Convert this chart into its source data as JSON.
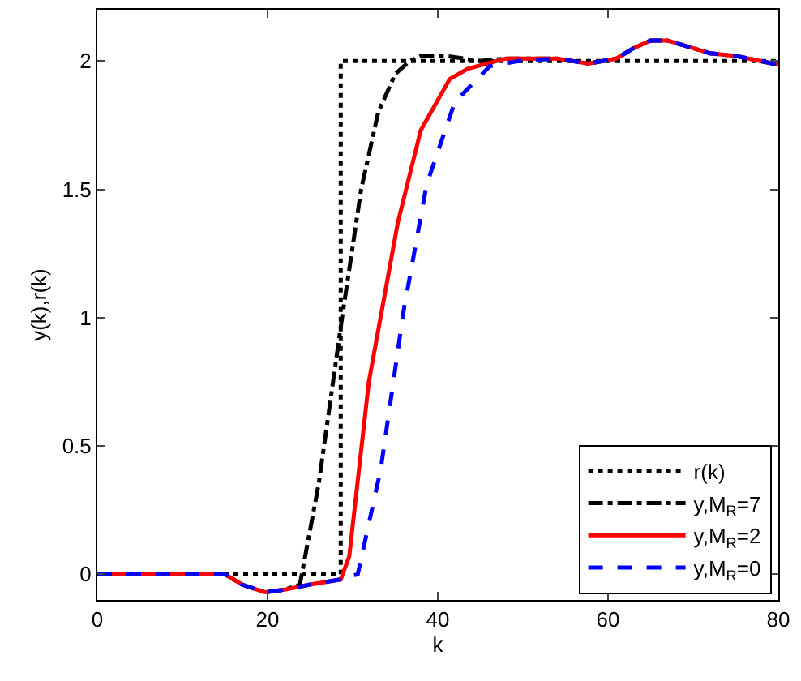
{
  "chart_data": {
    "type": "line",
    "xlabel": "k",
    "ylabel": "y(k),r(k)",
    "xlim": [
      0,
      80
    ],
    "ylim": [
      -0.1,
      2.2
    ],
    "xticks": [
      0,
      20,
      40,
      60,
      80
    ],
    "yticks": [
      0,
      0.5,
      1,
      1.5,
      2
    ],
    "legend": "bottom right",
    "series": [
      {
        "name": "r(k)",
        "color": "#000000",
        "line_style": "dotted",
        "x": [
          0,
          28.6,
          28.6,
          80
        ],
        "values": [
          0,
          0,
          2,
          2
        ]
      },
      {
        "name": "y,M$_{R}$=7",
        "color": "#000000",
        "line_style": "dashdot",
        "x": [
          0,
          15,
          17,
          19.7,
          22,
          23.8,
          26,
          28.8,
          31,
          33,
          35,
          36.7,
          38,
          41,
          45,
          48,
          54,
          57.7,
          61,
          63,
          65,
          67,
          72,
          75,
          79.4,
          80
        ],
        "values": [
          0,
          0,
          -0.04,
          -0.07,
          -0.06,
          -0.04,
          0.35,
          1.01,
          1.5,
          1.8,
          1.95,
          2.0,
          2.02,
          2.02,
          2.0,
          2.01,
          2.01,
          1.99,
          2.01,
          2.05,
          2.08,
          2.08,
          2.03,
          2.02,
          1.99,
          1.99
        ]
      },
      {
        "name": "y,M$_{R}$=2",
        "color": "#ff0000",
        "line_style": "solid",
        "x": [
          0,
          15,
          17,
          19.7,
          22,
          25,
          28.6,
          29.6,
          31.9,
          35.3,
          38,
          41.4,
          43.5,
          48,
          54,
          57.7,
          61,
          63,
          65,
          67,
          72,
          75,
          79.4,
          80
        ],
        "values": [
          0,
          0,
          -0.04,
          -0.07,
          -0.06,
          -0.04,
          -0.02,
          0.07,
          0.75,
          1.37,
          1.73,
          1.93,
          1.97,
          2.01,
          2.01,
          1.99,
          2.01,
          2.05,
          2.08,
          2.08,
          2.03,
          2.02,
          1.99,
          1.99
        ]
      },
      {
        "name": "y,M$_{R}$=0",
        "color": "#0000ff",
        "line_style": "dashed",
        "x": [
          0,
          15,
          17,
          19.7,
          22,
          25,
          28.6,
          30.6,
          33.3,
          36,
          38.7,
          42,
          46.1,
          49.5,
          54,
          57.7,
          61,
          63,
          65,
          67,
          72,
          75,
          79.4,
          80
        ],
        "values": [
          0,
          0,
          -0.04,
          -0.07,
          -0.06,
          -0.04,
          -0.02,
          0,
          0.41,
          1.03,
          1.52,
          1.84,
          1.98,
          2.0,
          2.01,
          1.99,
          2.01,
          2.05,
          2.08,
          2.08,
          2.03,
          2.02,
          1.99,
          1.99
        ]
      }
    ]
  }
}
